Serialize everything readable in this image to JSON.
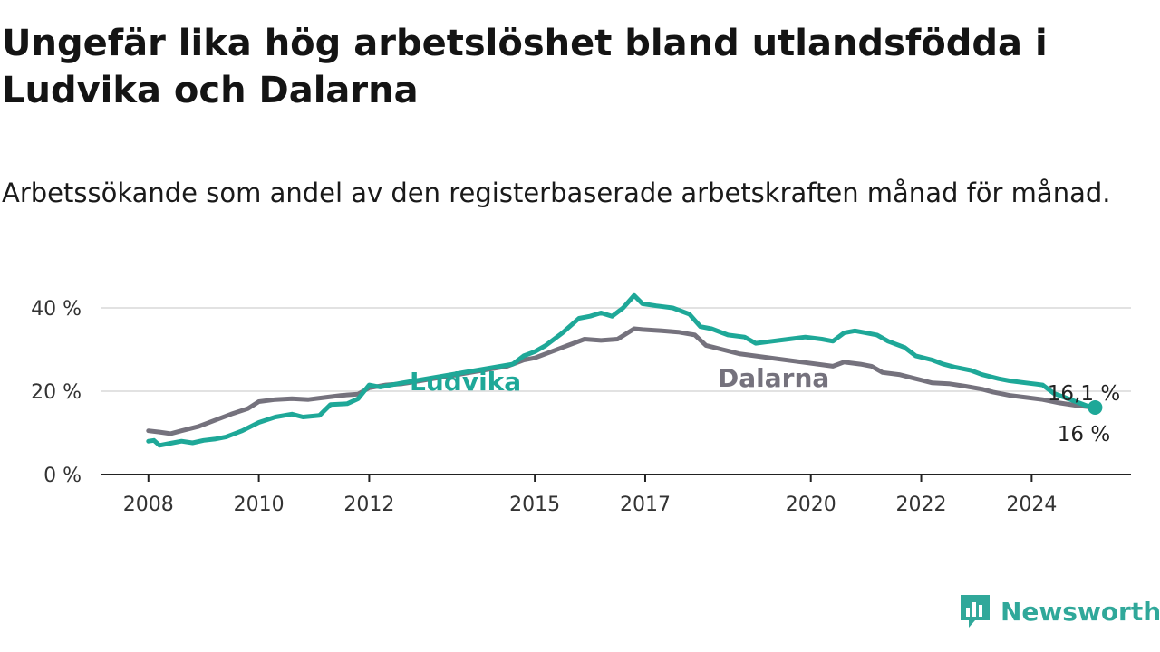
{
  "title": "Ungefär lika hög arbetslöshet bland utlandsfödda i Ludvika och Dalarna",
  "subtitle": "Arbetssökande som andel av den registerbaserade arbetskraften månad för månad.",
  "brand": {
    "name": "Newsworthy",
    "icon": "bar-chart-icon",
    "color": "#30a89a"
  },
  "chart_data": {
    "type": "line",
    "x_ticks": [
      "2008",
      "2010",
      "2012",
      "2015",
      "2017",
      "2020",
      "2022",
      "2024"
    ],
    "y_ticks": [
      "0 %",
      "20 %",
      "40 %"
    ],
    "ylim": [
      0,
      45
    ],
    "xlim": [
      2007.15,
      2025.8
    ],
    "grid": "horizontal",
    "series": [
      {
        "name": "Ludvika",
        "color": "#1ea898",
        "end_label": "16,1 %",
        "points": [
          [
            2008.0,
            8.0
          ],
          [
            2008.1,
            8.2
          ],
          [
            2008.2,
            7.0
          ],
          [
            2008.4,
            7.5
          ],
          [
            2008.6,
            8.0
          ],
          [
            2008.8,
            7.6
          ],
          [
            2009.0,
            8.2
          ],
          [
            2009.2,
            8.5
          ],
          [
            2009.4,
            9.0
          ],
          [
            2009.7,
            10.5
          ],
          [
            2010.0,
            12.5
          ],
          [
            2010.3,
            13.8
          ],
          [
            2010.6,
            14.5
          ],
          [
            2010.8,
            13.8
          ],
          [
            2011.1,
            14.2
          ],
          [
            2011.3,
            16.8
          ],
          [
            2011.6,
            17.0
          ],
          [
            2011.8,
            18.2
          ],
          [
            2012.0,
            21.5
          ],
          [
            2012.2,
            21.0
          ],
          [
            2012.4,
            21.5
          ],
          [
            2012.6,
            22.0
          ],
          [
            2014.6,
            26.5
          ],
          [
            2014.8,
            28.5
          ],
          [
            2015.0,
            29.5
          ],
          [
            2015.2,
            31.0
          ],
          [
            2015.5,
            34.0
          ],
          [
            2015.8,
            37.5
          ],
          [
            2016.0,
            38.0
          ],
          [
            2016.2,
            38.8
          ],
          [
            2016.4,
            38.0
          ],
          [
            2016.6,
            40.0
          ],
          [
            2016.8,
            43.0
          ],
          [
            2016.95,
            41.0
          ],
          [
            2017.2,
            40.5
          ],
          [
            2017.5,
            40.0
          ],
          [
            2017.8,
            38.5
          ],
          [
            2018.0,
            35.5
          ],
          [
            2018.2,
            35.0
          ],
          [
            2018.5,
            33.5
          ],
          [
            2018.8,
            33.0
          ],
          [
            2019.0,
            31.5
          ],
          [
            2019.3,
            32.0
          ],
          [
            2019.6,
            32.5
          ],
          [
            2019.9,
            33.0
          ],
          [
            2020.2,
            32.5
          ],
          [
            2020.4,
            32.0
          ],
          [
            2020.6,
            34.0
          ],
          [
            2020.8,
            34.5
          ],
          [
            2021.0,
            34.0
          ],
          [
            2021.2,
            33.5
          ],
          [
            2021.4,
            32.0
          ],
          [
            2021.7,
            30.5
          ],
          [
            2021.9,
            28.5
          ],
          [
            2022.2,
            27.5
          ],
          [
            2022.4,
            26.5
          ],
          [
            2022.6,
            25.8
          ],
          [
            2022.9,
            25.0
          ],
          [
            2023.1,
            24.0
          ],
          [
            2023.4,
            23.0
          ],
          [
            2023.6,
            22.5
          ],
          [
            2023.9,
            22.0
          ],
          [
            2024.2,
            21.5
          ],
          [
            2024.4,
            19.5
          ],
          [
            2024.6,
            18.5
          ],
          [
            2024.8,
            17.5
          ],
          [
            2025.0,
            16.5
          ],
          [
            2025.15,
            16.1
          ]
        ]
      },
      {
        "name": "Dalarna",
        "color": "#75727d",
        "end_label": "16 %",
        "points": [
          [
            2008.0,
            10.5
          ],
          [
            2008.2,
            10.2
          ],
          [
            2008.4,
            9.8
          ],
          [
            2008.6,
            10.5
          ],
          [
            2008.9,
            11.5
          ],
          [
            2009.2,
            13.0
          ],
          [
            2009.5,
            14.5
          ],
          [
            2009.8,
            15.8
          ],
          [
            2010.0,
            17.5
          ],
          [
            2010.3,
            18.0
          ],
          [
            2010.6,
            18.2
          ],
          [
            2010.9,
            18.0
          ],
          [
            2011.2,
            18.5
          ],
          [
            2011.5,
            19.0
          ],
          [
            2011.8,
            19.3
          ],
          [
            2012.0,
            20.8
          ],
          [
            2012.3,
            21.5
          ],
          [
            2012.6,
            21.8
          ],
          [
            2012.7,
            22.0
          ],
          [
            2014.5,
            26.0
          ],
          [
            2014.8,
            27.5
          ],
          [
            2015.0,
            28.0
          ],
          [
            2015.3,
            29.5
          ],
          [
            2015.6,
            31.0
          ],
          [
            2015.9,
            32.5
          ],
          [
            2016.2,
            32.2
          ],
          [
            2016.5,
            32.5
          ],
          [
            2016.8,
            35.0
          ],
          [
            2016.95,
            34.8
          ],
          [
            2017.3,
            34.5
          ],
          [
            2017.6,
            34.2
          ],
          [
            2017.9,
            33.5
          ],
          [
            2018.1,
            31.0
          ],
          [
            2018.4,
            30.0
          ],
          [
            2018.7,
            29.0
          ],
          [
            2020.4,
            26.0
          ],
          [
            2020.6,
            27.0
          ],
          [
            2020.9,
            26.5
          ],
          [
            2021.1,
            26.0
          ],
          [
            2021.3,
            24.5
          ],
          [
            2021.6,
            24.0
          ],
          [
            2021.9,
            23.0
          ],
          [
            2022.2,
            22.0
          ],
          [
            2022.5,
            21.8
          ],
          [
            2022.8,
            21.2
          ],
          [
            2023.1,
            20.5
          ],
          [
            2023.3,
            19.8
          ],
          [
            2023.6,
            19.0
          ],
          [
            2023.9,
            18.5
          ],
          [
            2024.2,
            18.0
          ],
          [
            2024.5,
            17.2
          ],
          [
            2024.8,
            16.6
          ],
          [
            2025.0,
            16.3
          ],
          [
            2025.15,
            16.0
          ]
        ]
      }
    ]
  }
}
